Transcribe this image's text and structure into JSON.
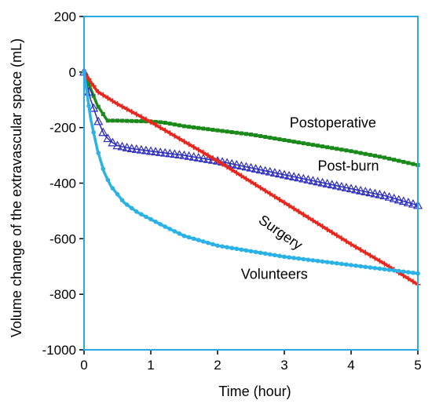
{
  "chart_data": {
    "type": "line",
    "xlabel": "Time (hour)",
    "ylabel": "Volume change of the extravascular space (mL)",
    "xlim": [
      0,
      5
    ],
    "ylim": [
      -1000,
      200
    ],
    "x_ticks": [
      "0",
      "1",
      "2",
      "3",
      "4",
      "5"
    ],
    "y_ticks": [
      "200",
      "0",
      "-200",
      "-400",
      "-600",
      "-800",
      "-1000"
    ],
    "grid": false,
    "frame_color": "#29abe2",
    "series": [
      {
        "name": "Postoperative",
        "color": "#1a8a1a",
        "marker": "square",
        "x": [
          0,
          0.1,
          0.2,
          0.35,
          0.5,
          1.0,
          1.2,
          1.5,
          2.0,
          2.5,
          3.0,
          3.5,
          4.0,
          4.5,
          5.0
        ],
        "y": [
          0,
          -60,
          -120,
          -175,
          -175,
          -178,
          -182,
          -195,
          -210,
          -225,
          -245,
          -265,
          -285,
          -308,
          -335
        ]
      },
      {
        "name": "Post-burn",
        "color": "#2b2bbb",
        "marker": "triangle",
        "x": [
          0,
          0.1,
          0.2,
          0.3,
          0.4,
          0.5,
          0.7,
          1.0,
          1.5,
          2.0,
          2.5,
          3.0,
          3.5,
          4.0,
          4.5,
          5.0
        ],
        "y": [
          0,
          -100,
          -170,
          -225,
          -250,
          -265,
          -275,
          -285,
          -300,
          -320,
          -345,
          -370,
          -395,
          -420,
          -445,
          -480
        ]
      },
      {
        "name": "Surgery",
        "color": "#e8261d",
        "marker": "plus",
        "x": [
          0,
          0.2,
          0.5,
          1.0,
          1.5,
          2.0,
          2.5,
          3.0,
          3.5,
          4.0,
          4.5,
          5.0
        ],
        "y": [
          0,
          -70,
          -115,
          -180,
          -250,
          -320,
          -395,
          -470,
          -545,
          -620,
          -690,
          -765
        ]
      },
      {
        "name": "Volunteers",
        "color": "#2ab2e6",
        "marker": "circle",
        "x": [
          0,
          0.1,
          0.2,
          0.3,
          0.4,
          0.6,
          0.8,
          1.0,
          1.2,
          1.5,
          2.0,
          2.5,
          3.0,
          3.5,
          4.0,
          4.5,
          5.0
        ],
        "y": [
          0,
          -170,
          -280,
          -360,
          -410,
          -470,
          -505,
          -530,
          -555,
          -590,
          -625,
          -645,
          -665,
          -680,
          -695,
          -710,
          -725
        ]
      }
    ],
    "annotations": [
      {
        "text": "Postoperative",
        "x": 3.08,
        "y": -200,
        "rotate": 0
      },
      {
        "text": "Post-burn",
        "x": 3.5,
        "y": -355,
        "rotate": 0
      },
      {
        "text": "Surgery",
        "x": 2.6,
        "y": -540,
        "rotate": 35
      },
      {
        "text": "Volunteers",
        "x": 2.35,
        "y": -745,
        "rotate": 0
      }
    ]
  }
}
